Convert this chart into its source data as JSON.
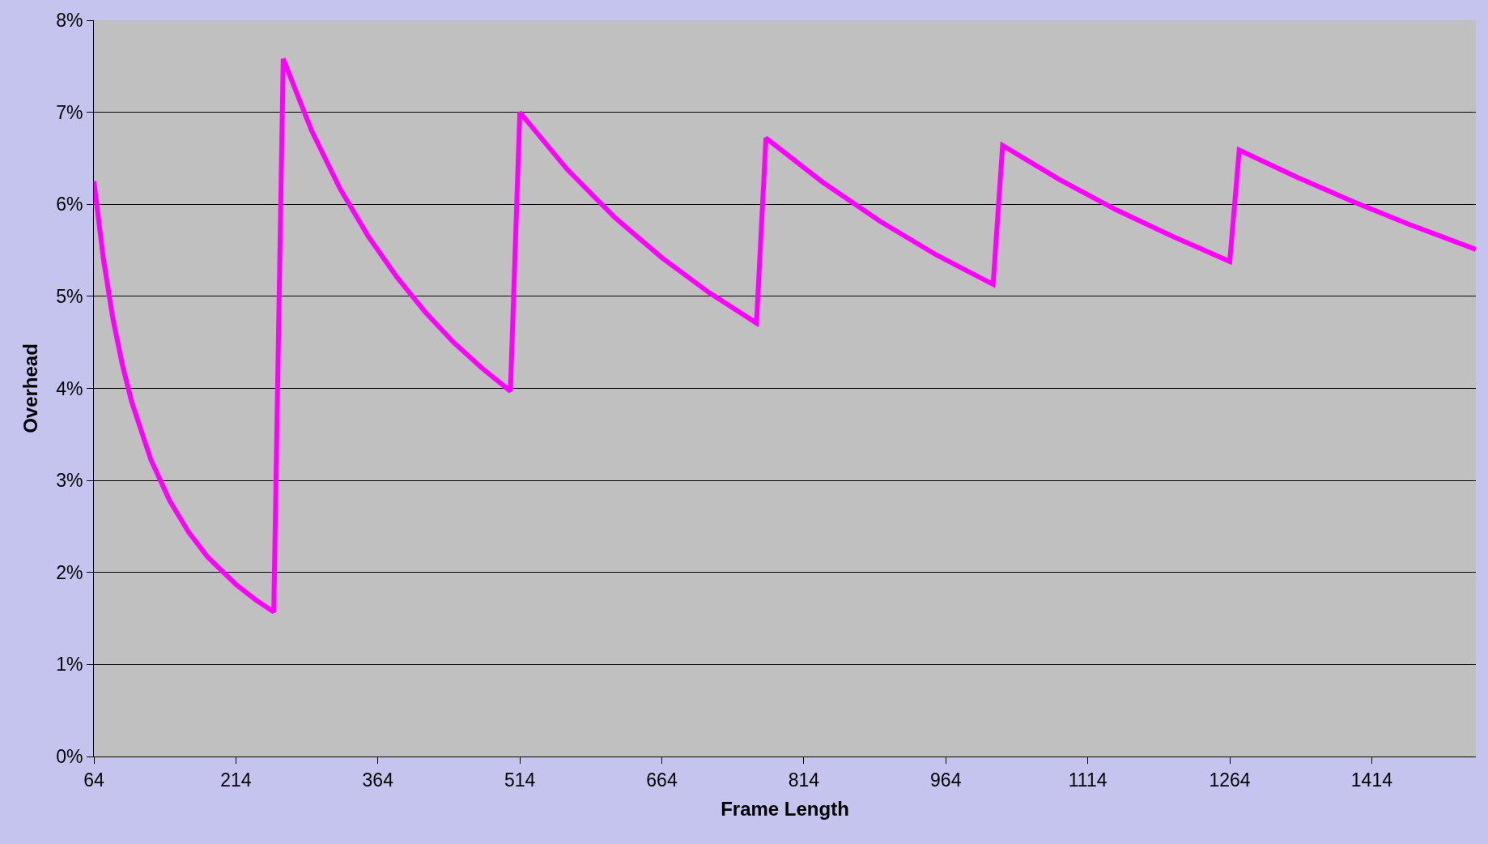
{
  "chart_data": {
    "type": "line",
    "xlabel": "Frame Length",
    "ylabel": "Overhead",
    "x": [
      64,
      74,
      84,
      94,
      104,
      124,
      144,
      164,
      184,
      214,
      234,
      254,
      264,
      294,
      324,
      354,
      384,
      414,
      444,
      474,
      504,
      514,
      564,
      614,
      664,
      714,
      764,
      774,
      834,
      894,
      954,
      1014,
      1024,
      1084,
      1144,
      1204,
      1264,
      1274,
      1334,
      1394,
      1454,
      1524
    ],
    "series": [
      {
        "color": "#ff00ff",
        "values": [
          6.25,
          5.41,
          4.76,
          4.26,
          3.85,
          3.23,
          2.78,
          2.44,
          2.17,
          1.87,
          1.71,
          1.57,
          7.58,
          6.8,
          6.17,
          5.65,
          5.21,
          4.83,
          4.5,
          4.22,
          3.97,
          7.0,
          6.38,
          5.86,
          5.42,
          5.04,
          4.71,
          6.72,
          6.24,
          5.82,
          5.45,
          5.13,
          6.64,
          6.27,
          5.94,
          5.65,
          5.38,
          6.59,
          6.3,
          6.03,
          5.78,
          5.51
        ]
      }
    ],
    "xlim": [
      64,
      1524
    ],
    "xticks": [
      64,
      214,
      364,
      514,
      664,
      814,
      964,
      1114,
      1264,
      1414
    ],
    "ylim": [
      0,
      8
    ],
    "yticks": [
      {
        "value": 0,
        "label": "0%"
      },
      {
        "value": 1,
        "label": "1%"
      },
      {
        "value": 2,
        "label": "2%"
      },
      {
        "value": 3,
        "label": "3%"
      },
      {
        "value": 4,
        "label": "4%"
      },
      {
        "value": 5,
        "label": "5%"
      },
      {
        "value": 6,
        "label": "6%"
      },
      {
        "value": 7,
        "label": "7%"
      },
      {
        "value": 8,
        "label": "8%"
      }
    ],
    "grid": "y",
    "marker": "none",
    "line_style": "solid"
  }
}
